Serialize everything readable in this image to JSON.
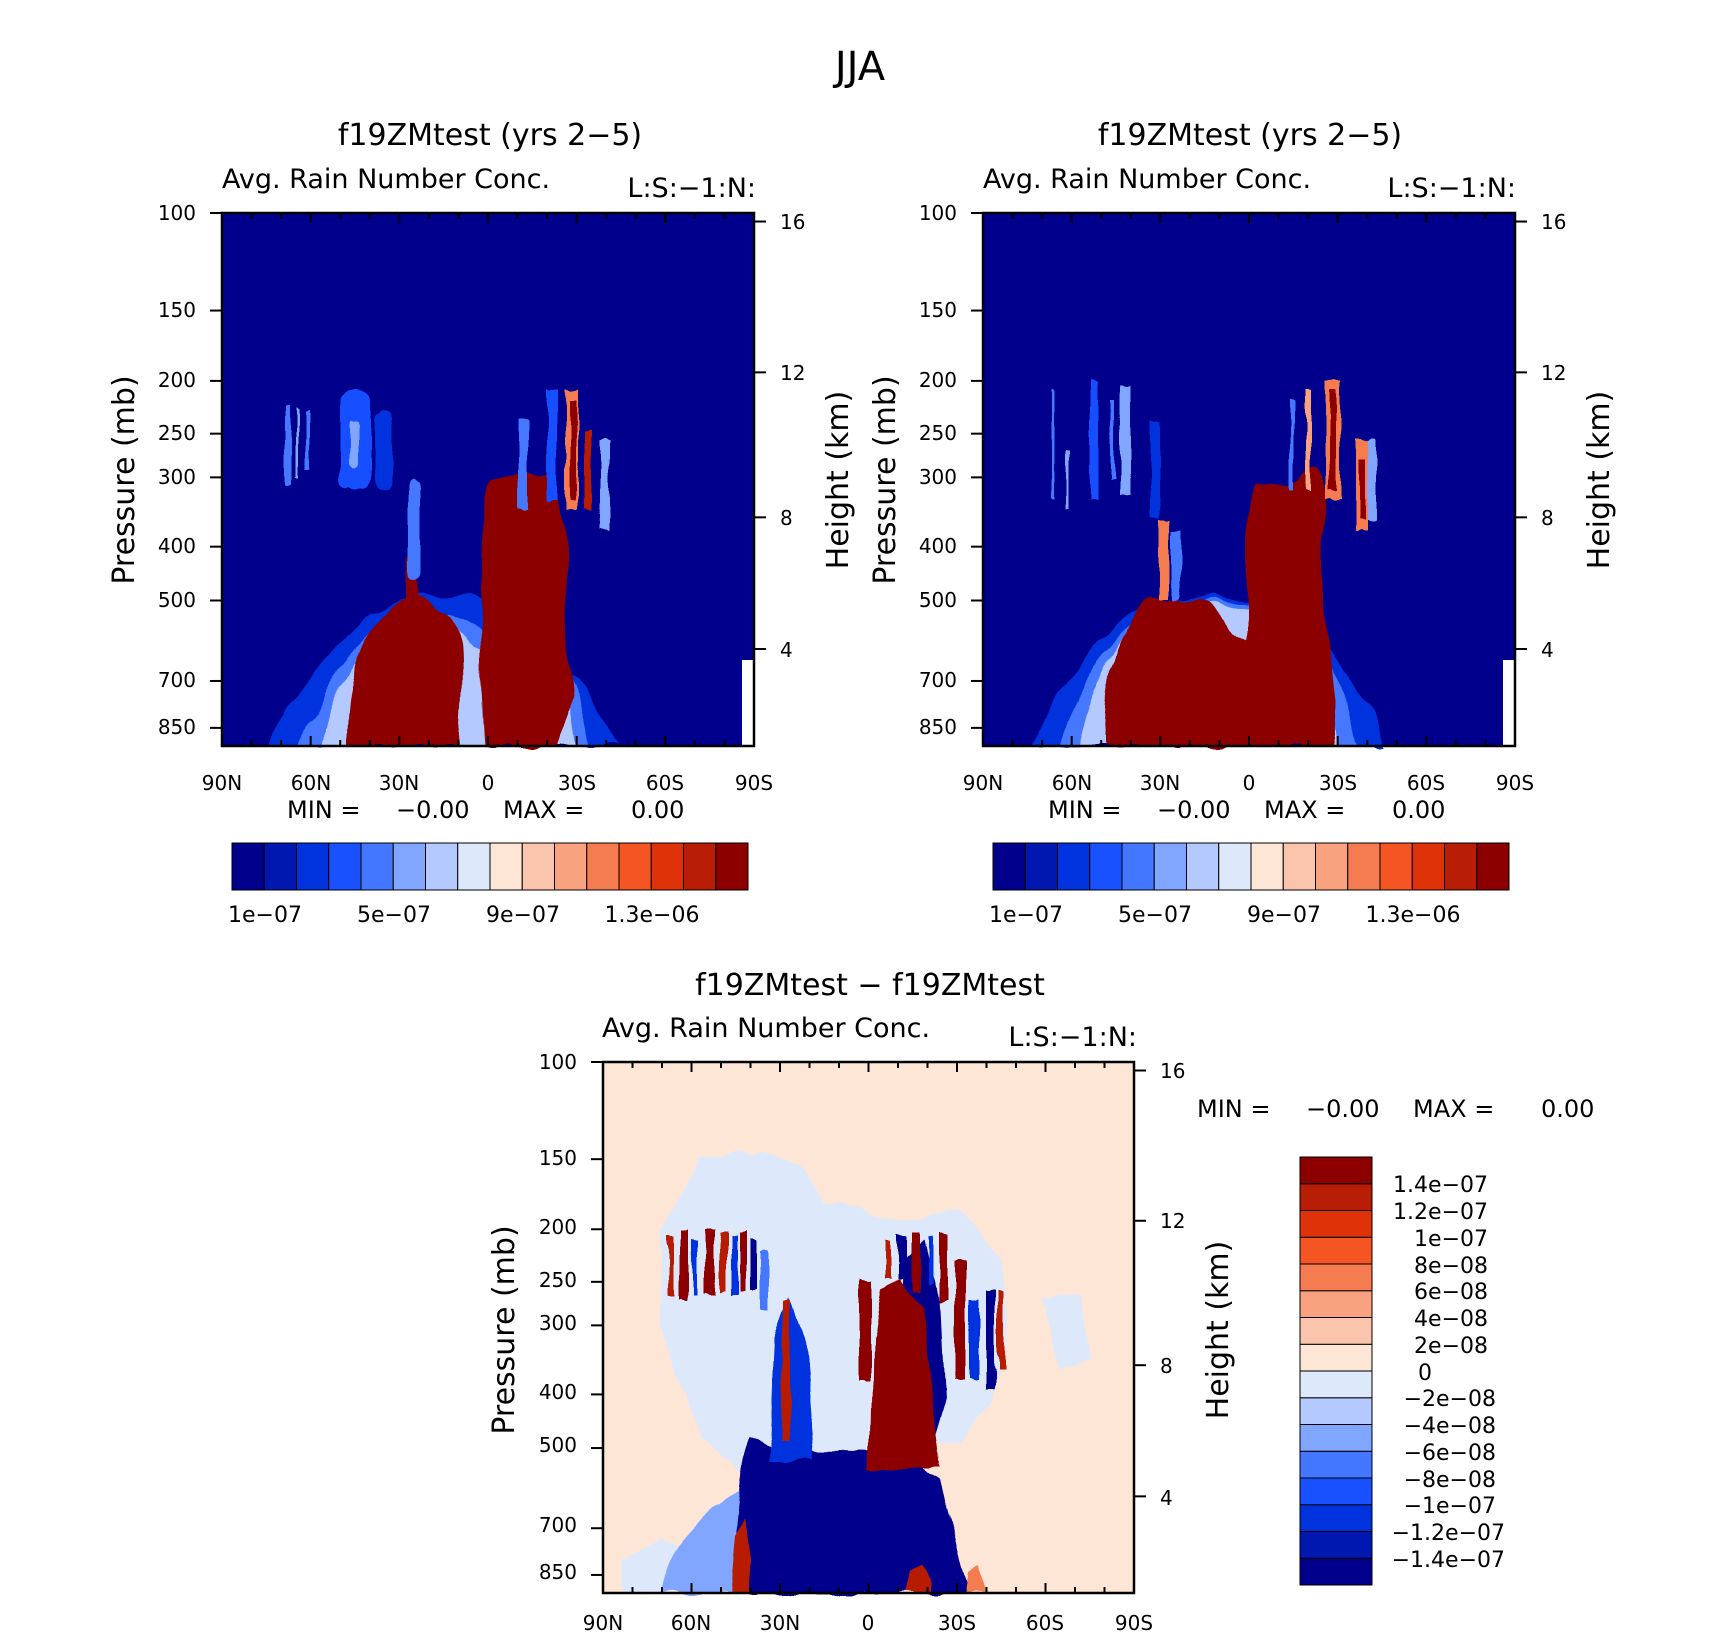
{
  "main_title": "JJA",
  "colors": {
    "seq": [
      "#00008c",
      "#0018b0",
      "#0033dd",
      "#1950ff",
      "#4477ff",
      "#80a6ff",
      "#b3c9ff",
      "#dde9fb",
      "#fde6d6",
      "#fbc5ad",
      "#f8a27f",
      "#f57c50",
      "#f55423",
      "#e03208",
      "#b81d05",
      "#8c0000"
    ],
    "div": [
      "#00008c",
      "#0018b0",
      "#0033dd",
      "#1950ff",
      "#4477ff",
      "#80a6ff",
      "#b3c9ff",
      "#dde9fb",
      "#fde6d6",
      "#fbc5ad",
      "#f8a27f",
      "#f57c50",
      "#f55423",
      "#e03208",
      "#b81d05",
      "#8c0000"
    ]
  },
  "panels": [
    {
      "title": "f19ZMtest (yrs 2−5)",
      "left_string": "Avg. Rain Number Conc.",
      "right_string": "L:S:−1:N:",
      "min_text": "MIN =",
      "min_value": "−0.00",
      "max_text": "MAX =",
      "max_value": "0.00",
      "colorbar_labels": [
        "1e−07",
        "5e−07",
        "9e−07",
        "1.3e−06"
      ]
    },
    {
      "title": "f19ZMtest (yrs 2−5)",
      "left_string": "Avg. Rain Number Conc.",
      "right_string": "L:S:−1:N:",
      "min_text": "MIN =",
      "min_value": "−0.00",
      "max_text": "MAX =",
      "max_value": "0.00",
      "colorbar_labels": [
        "1e−07",
        "5e−07",
        "9e−07",
        "1.3e−06"
      ]
    },
    {
      "title": "f19ZMtest − f19ZMtest",
      "left_string": "Avg. Rain Number Conc.",
      "right_string": "L:S:−1:N:",
      "min_text": "MIN =",
      "min_value": "−0.00",
      "max_text": "MAX =",
      "max_value": "0.00",
      "colorbar_labels": [
        "1.4e−07",
        "1.2e−07",
        "1e−07",
        "8e−08",
        "6e−08",
        "4e−08",
        "2e−08",
        "0",
        "−2e−08",
        "−4e−08",
        "−6e−08",
        "−8e−08",
        "−1e−07",
        "−1.2e−07",
        "−1.4e−07"
      ]
    }
  ],
  "axes": {
    "x_ticks": [
      "90N",
      "60N",
      "30N",
      "0",
      "30S",
      "60S",
      "90S"
    ],
    "p_ticks": [
      "100",
      "150",
      "200",
      "250",
      "300",
      "400",
      "500",
      "700",
      "850"
    ],
    "h_ticks": [
      "16",
      "12",
      "8",
      "4"
    ],
    "ylabel_left": "Pressure (mb)",
    "ylabel_right": "Height (km)"
  },
  "chart_data": [
    {
      "type": "heatmap",
      "title": "f19ZMtest (yrs 2−5)",
      "subtitle": "Avg. Rain Number Conc.",
      "xlabel": "",
      "ylabel": "Pressure (mb)",
      "ylabel_right": "Height (km)",
      "x_range": [
        90,
        -90
      ],
      "y_range_mb": [
        100,
        900
      ],
      "contour_levels": [
        1e-07,
        2e-07,
        3e-07,
        4e-07,
        5e-07,
        6e-07,
        7e-07,
        8e-07,
        9e-07,
        1e-06,
        1.1e-06,
        1.2e-06,
        1.3e-06,
        1.4e-06,
        1.5e-06
      ],
      "features": [
        {
          "name": "subtropical core",
          "lat_range": [
            48,
            10
          ],
          "pressure_range_mb": [
            490,
            900
          ],
          "value": 1.5e-06
        },
        {
          "name": "equatorial core",
          "lat_range": [
            1,
            -28
          ],
          "pressure_range_mb": [
            320,
            900
          ],
          "value": 1.5e-06
        },
        {
          "name": "upper streak",
          "lat_range": [
            -27,
            -38
          ],
          "pressure_range_mb": [
            200,
            390
          ],
          "value": 1.5e-06
        }
      ]
    },
    {
      "type": "heatmap",
      "title": "f19ZMtest (yrs 2−5)",
      "subtitle": "Avg. Rain Number Conc.",
      "xlabel": "",
      "ylabel": "Pressure (mb)",
      "ylabel_right": "Height (km)",
      "x_range": [
        90,
        -90
      ],
      "y_range_mb": [
        100,
        900
      ],
      "contour_levels": [
        1e-07,
        2e-07,
        3e-07,
        4e-07,
        5e-07,
        6e-07,
        7e-07,
        8e-07,
        9e-07,
        1e-06,
        1.1e-06,
        1.2e-06,
        1.3e-06,
        1.4e-06,
        1.5e-06
      ],
      "features": [
        {
          "name": "subtropical core",
          "lat_range": [
            48,
            2
          ],
          "pressure_range_mb": [
            490,
            900
          ],
          "value": 1.5e-06
        },
        {
          "name": "equatorial core",
          "lat_range": [
            1,
            -30
          ],
          "pressure_range_mb": [
            310,
            900
          ],
          "value": 1.5e-06
        },
        {
          "name": "upper streak",
          "lat_range": [
            -26,
            -38
          ],
          "pressure_range_mb": [
            200,
            390
          ],
          "value": 1.5e-06
        }
      ]
    },
    {
      "type": "heatmap",
      "title": "f19ZMtest − f19ZMtest",
      "subtitle": "Avg. Rain Number Conc.",
      "xlabel": "",
      "ylabel": "Pressure (mb)",
      "ylabel_right": "Height (km)",
      "x_range": [
        90,
        -90
      ],
      "y_range_mb": [
        100,
        900
      ],
      "contour_levels": [
        -1.4e-07,
        -1.2e-07,
        -1e-07,
        -8e-08,
        -6e-08,
        -4e-08,
        -2e-08,
        0,
        2e-08,
        4e-08,
        6e-08,
        8e-08,
        1e-07,
        1.2e-07,
        1.4e-07
      ],
      "features": [
        {
          "name": "negative lower block",
          "lat_range": [
            44,
            -30
          ],
          "pressure_range_mb": [
            500,
            900
          ],
          "value": -1.5e-07
        },
        {
          "name": "positive upper streaks",
          "lat_range": [
            66,
            -45
          ],
          "pressure_range_mb": [
            200,
            420
          ],
          "value": 1.5e-07
        },
        {
          "name": "background",
          "lat_range": [
            90,
            -90
          ],
          "pressure_range_mb": [
            100,
            900
          ],
          "value": 1e-08
        }
      ]
    }
  ]
}
